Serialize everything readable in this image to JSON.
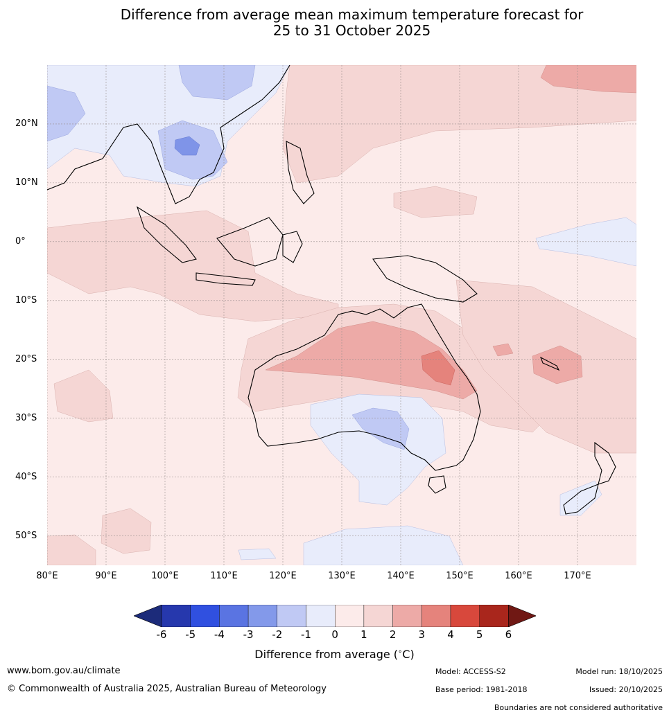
{
  "title": {
    "line1": "Difference from average mean maximum temperature forecast for",
    "line2": "25 to 31 October 2025"
  },
  "map": {
    "lat_labels": [
      "20°N",
      "10°N",
      "0°",
      "10°S",
      "20°S",
      "30°S",
      "40°S",
      "50°S"
    ],
    "lat_values": [
      20,
      10,
      0,
      -10,
      -20,
      -30,
      -40,
      -50
    ],
    "lon_labels": [
      "80°E",
      "90°E",
      "100°E",
      "110°E",
      "120°E",
      "130°E",
      "140°E",
      "150°E",
      "160°E",
      "170°E"
    ],
    "lon_values": [
      80,
      90,
      100,
      110,
      120,
      130,
      140,
      150,
      160,
      170
    ],
    "lon_range": [
      80,
      180
    ],
    "lat_range": [
      -55,
      30
    ],
    "background_color": "#fcebea",
    "anomaly_regions": [
      {
        "name": "southeast-asia-cool",
        "level": "-1 to 0",
        "color": "#e8ecfb"
      },
      {
        "name": "indochina-cool",
        "level": "-2 to -1",
        "color": "#c0c9f4"
      },
      {
        "name": "indochina-core-cool",
        "level": "-3 to -2",
        "color": "#7f94e8"
      },
      {
        "name": "australia-interior-warm",
        "level": "1 to 2",
        "color": "#f5d6d4"
      },
      {
        "name": "northern-australia-warm",
        "level": "2 to 3",
        "color": "#edaaa7"
      },
      {
        "name": "queensland-warm",
        "level": "3 to 4",
        "color": "#e5837c"
      },
      {
        "name": "southern-australia-cool",
        "level": "-1 to 0",
        "color": "#e8ecfb"
      },
      {
        "name": "great-australian-bight-cool",
        "level": "-2 to -1",
        "color": "#c0c9f4"
      },
      {
        "name": "north-pacific-warm",
        "level": "2 to 3",
        "color": "#edaaa7"
      },
      {
        "name": "new-caledonia-warm",
        "level": "2 to 3",
        "color": "#edaaa7"
      }
    ]
  },
  "colorbar": {
    "ticks": [
      "-6",
      "-5",
      "-4",
      "-3",
      "-2",
      "-1",
      "0",
      "1",
      "2",
      "3",
      "4",
      "5",
      "6"
    ],
    "colors": [
      "#1c2b7a",
      "#2638ad",
      "#3050e0",
      "#5a74e2",
      "#8399ea",
      "#c0c9f4",
      "#e8ecfb",
      "#fcebea",
      "#f5d6d4",
      "#edaaa7",
      "#e5837c",
      "#d8483c",
      "#a9261c",
      "#701814"
    ],
    "title": "Difference from average (",
    "unit": "C)"
  },
  "footer": {
    "website": "www.bom.gov.au/climate",
    "copyright": "© Commonwealth of Australia 2025, Australian Bureau of Meteorology",
    "model": "Model: ACCESS-S2",
    "base_period": "Base period: 1981-2018",
    "model_run": "Model run: 18/10/2025",
    "issued": "Issued: 20/10/2025",
    "disclaimer": "Boundaries are not considered authoritative"
  }
}
